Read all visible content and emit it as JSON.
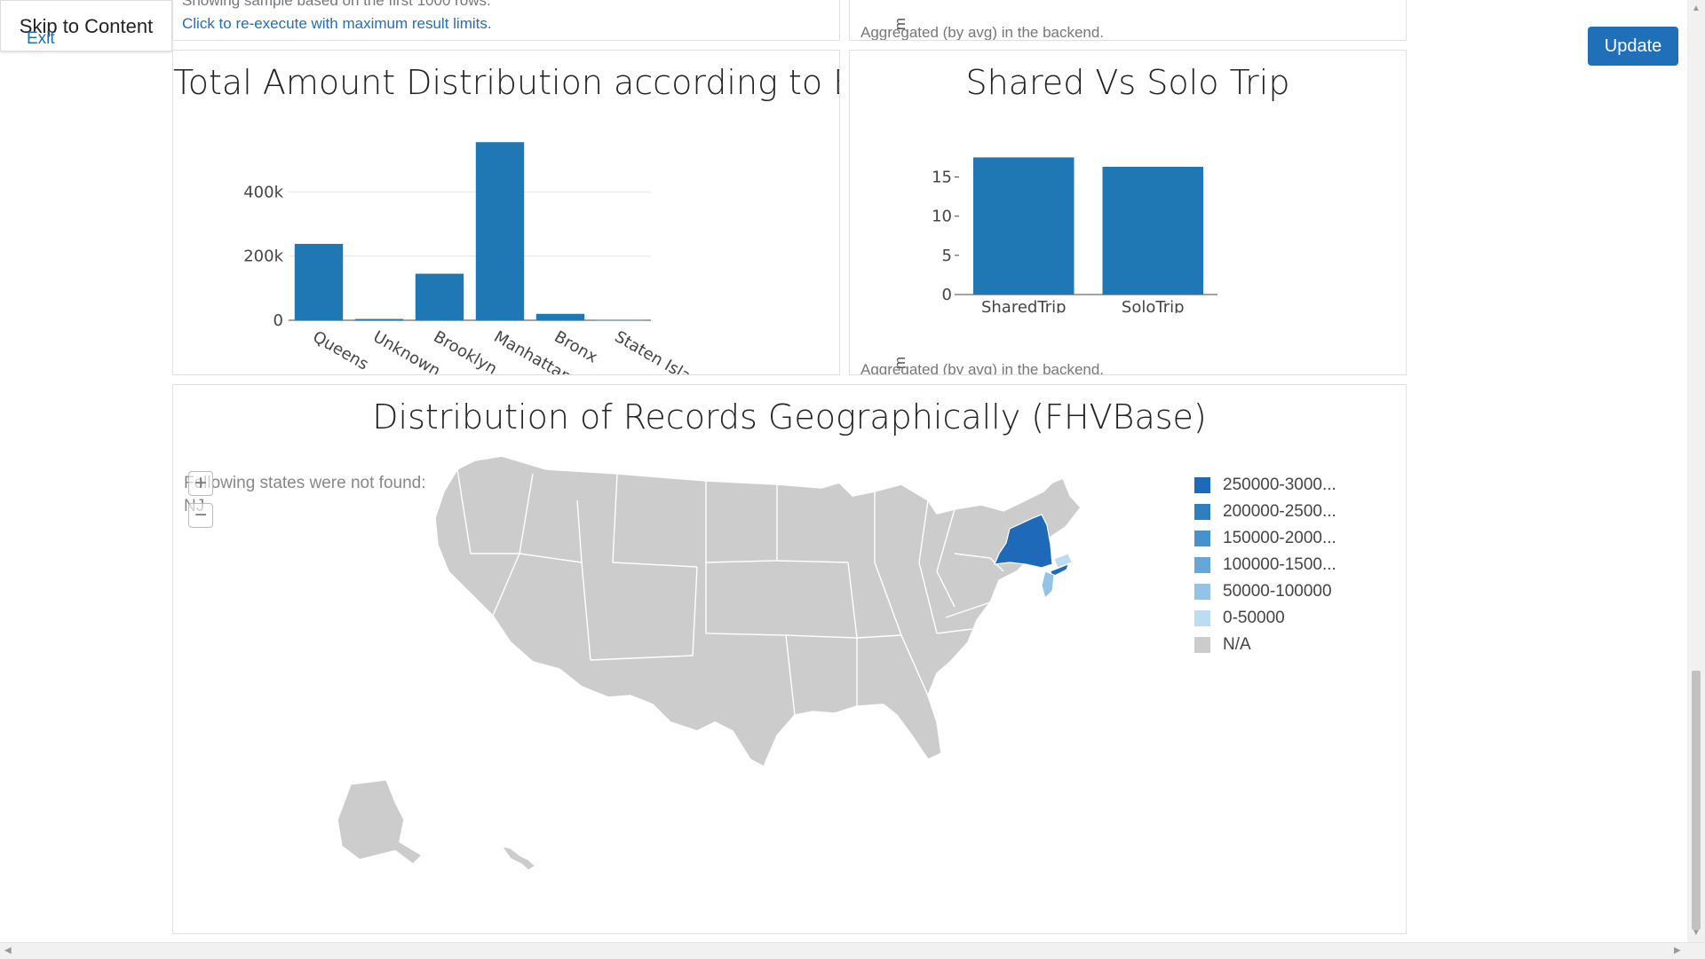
{
  "nav": {
    "skip_label": "Skip to Content",
    "exit_label": "Exit",
    "update_label": "Update"
  },
  "top_left_panel": {
    "sample_note": "Showing sample based on the first 1000 rows.",
    "reexecute_link": "Click to re-execute with maximum result limits."
  },
  "top_right_panel": {
    "aggregation_note": "Aggregated (by avg) in the backend."
  },
  "total_amount_panel": {
    "title": "Total Amount Distribution according to B...",
    "chart_data": {
      "type": "bar",
      "title": "Total Amount Distribution according to B...",
      "categories": [
        "Queens",
        "Unknown",
        "Brooklyn",
        "Manhattan",
        "Bronx",
        "Staten Island"
      ],
      "values": [
        238000,
        4000,
        145000,
        555000,
        20000,
        1000
      ],
      "ylim": [
        0,
        575000
      ],
      "ytick_values": [
        0,
        200000,
        400000
      ],
      "ytick_labels": [
        "0",
        "200k",
        "400k"
      ],
      "grid": true,
      "color": "#1f77b4"
    }
  },
  "shared_panel": {
    "title": "Shared Vs Solo Trip",
    "aggregation_note": "Aggregated (by avg) in the backend.",
    "chart_data": {
      "type": "bar",
      "title": "Shared Vs Solo Trip",
      "categories": [
        "SharedTrip",
        "SoloTrip"
      ],
      "values": [
        17.5,
        16.3
      ],
      "ylim": [
        0,
        18
      ],
      "ytick_values": [
        0,
        5,
        10,
        15
      ],
      "ytick_labels": [
        "0",
        "5",
        "10",
        "15"
      ],
      "color": "#1f77b4"
    }
  },
  "geo_panel": {
    "title": "Distribution of Records Geographically (FHVBase)",
    "not_found_label": "Following states were not found:",
    "not_found_value": "NJ",
    "zoom_in": "+",
    "zoom_out": "−",
    "legend": [
      {
        "label": "250000-3000...",
        "color": "#1f6ab8"
      },
      {
        "label": "200000-2500...",
        "color": "#2f7ebd"
      },
      {
        "label": "150000-2000...",
        "color": "#4592cc"
      },
      {
        "label": "100000-1500...",
        "color": "#64a7d8"
      },
      {
        "label": "50000-100000",
        "color": "#93c3e6"
      },
      {
        "label": "0-50000",
        "color": "#bcdcf2"
      },
      {
        "label": "N/A",
        "color": "#cccccc"
      }
    ]
  }
}
